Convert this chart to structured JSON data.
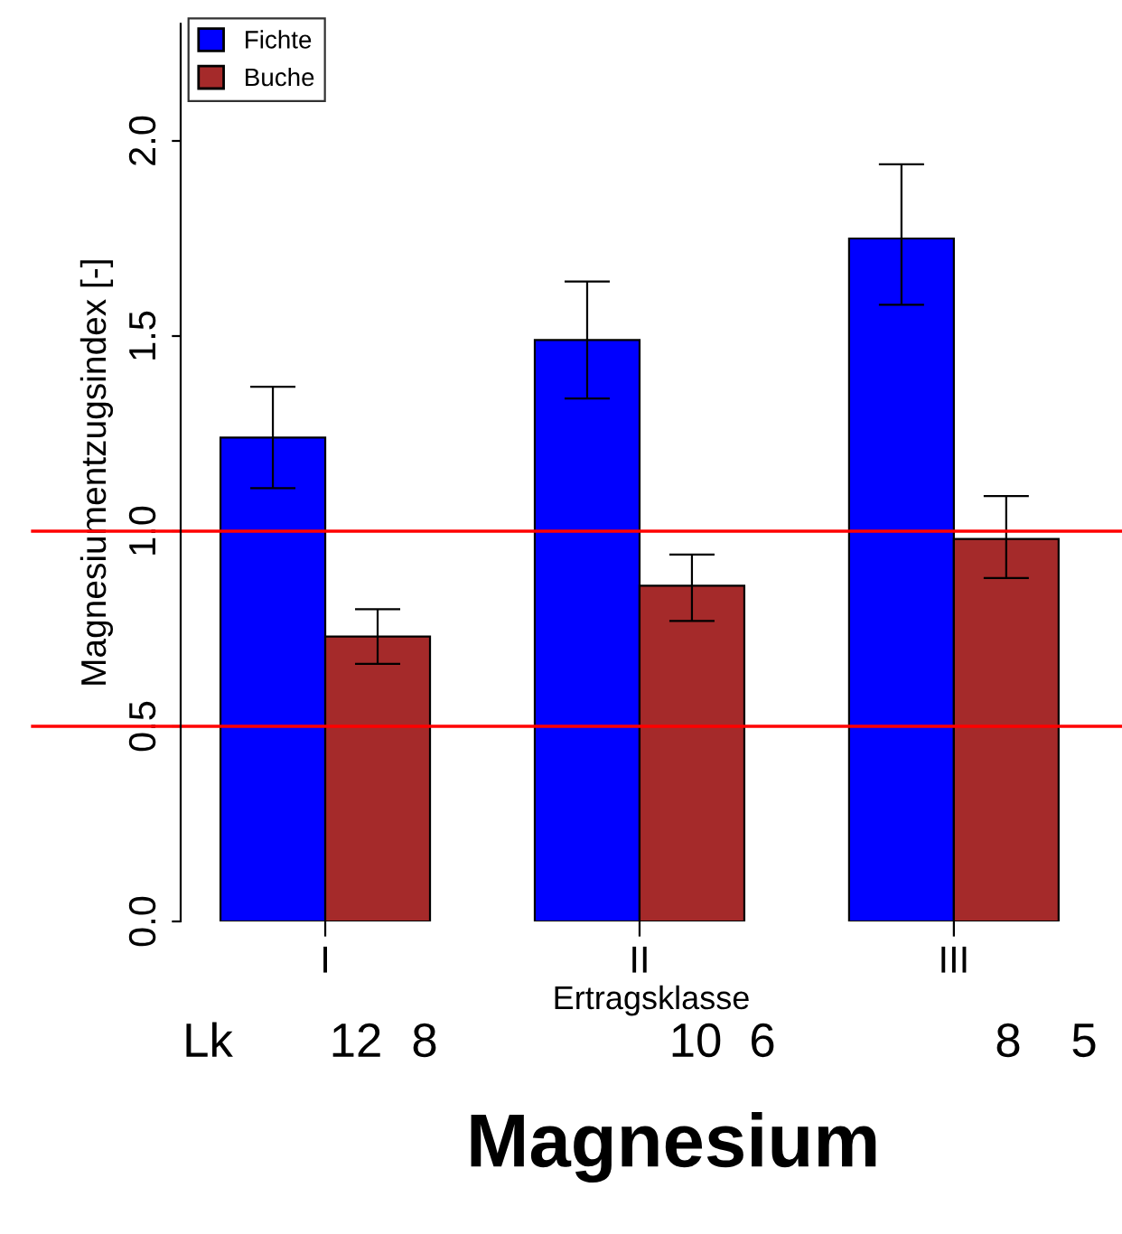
{
  "chart_data": {
    "type": "bar",
    "title": "Magnesium",
    "xlabel": "Ertragsklasse",
    "ylabel": "Magnesiumentzugsindex [-]",
    "categories": [
      "I",
      "II",
      "III"
    ],
    "series": [
      {
        "name": "Fichte",
        "color": "#0000ff",
        "values": [
          1.24,
          1.49,
          1.75
        ],
        "errors": [
          [
            1.11,
            1.37
          ],
          [
            1.34,
            1.64
          ],
          [
            1.58,
            1.94
          ]
        ]
      },
      {
        "name": "Buche",
        "color": "#a52a2a",
        "values": [
          0.73,
          0.86,
          0.98
        ],
        "errors": [
          [
            0.66,
            0.8
          ],
          [
            0.77,
            0.94
          ],
          [
            0.88,
            1.09
          ]
        ]
      }
    ],
    "ylim": [
      0,
      2.3
    ],
    "yticks": [
      {
        "value": 0,
        "label": "0.0"
      },
      0.5,
      {
        "value": 1,
        "label": "1.0"
      },
      1.5,
      {
        "value": 2,
        "label": "2.0"
      }
    ],
    "ref_lines": [
      {
        "axis": "y",
        "value": 1.0,
        "color": "#ff0000"
      },
      {
        "axis": "y",
        "value": 0.5,
        "color": "#ff0000"
      }
    ],
    "annotations": [
      "Lk",
      "12",
      "8",
      "10",
      "6",
      "8",
      "5"
    ],
    "legend": "top left",
    "grid": false
  }
}
